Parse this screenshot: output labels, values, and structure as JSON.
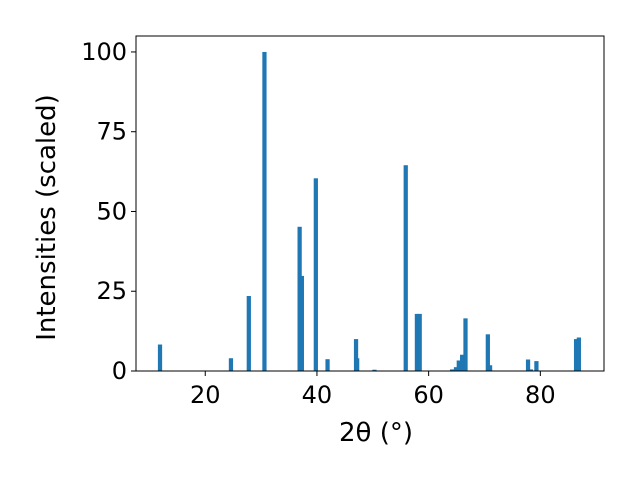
{
  "chart_data": {
    "type": "bar",
    "title": "",
    "xlabel": "2θ (°)",
    "ylabel": "Intensities (scaled)",
    "xlim": [
      7.6,
      91.4
    ],
    "ylim": [
      0,
      105
    ],
    "xticks": [
      20,
      40,
      60,
      80
    ],
    "yticks": [
      0,
      25,
      50,
      75,
      100
    ],
    "grid": false,
    "legend": "none",
    "bar_color": "#1f77b4",
    "bar_width": 0.76,
    "series": [
      {
        "x": [
          11.9,
          24.6,
          27.8,
          30.6,
          36.9,
          37.3,
          39.8,
          41.9,
          47.0,
          47.2,
          50.3,
          55.9,
          57.9,
          58.4,
          64.2,
          64.9,
          65.4,
          66.0,
          66.6,
          70.6,
          71.0,
          77.8,
          78.3,
          79.3,
          86.4,
          86.9
        ],
        "y": [
          8.3,
          4.0,
          23.5,
          100.0,
          45.2,
          29.8,
          60.4,
          3.7,
          10.0,
          4.0,
          0.4,
          64.5,
          17.9,
          17.9,
          0.5,
          1.2,
          3.3,
          5.1,
          16.5,
          11.5,
          1.8,
          3.6,
          0.5,
          3.1,
          10.0,
          10.5
        ]
      }
    ]
  }
}
